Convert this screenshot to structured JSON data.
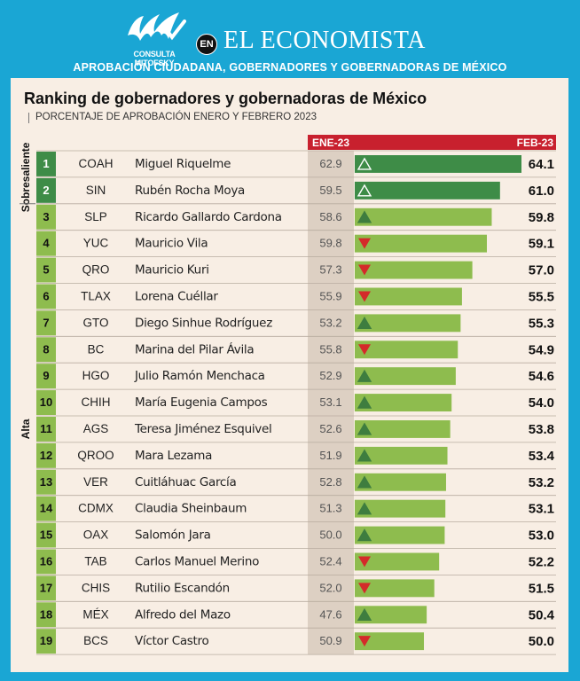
{
  "header": {
    "logo_text": "CONSULTA MITOFSKY",
    "en_badge": "EN",
    "brand": "EL ECONOMISTA",
    "subtitle": "APROBACIÓN CIUDADANA, GOBERNADORES Y GOBERNADORAS DE MÉXICO"
  },
  "colors": {
    "background": "#1aa6d4",
    "panel": "#f8eee4",
    "dark_green": "#3e8c47",
    "light_green": "#8ebc4e",
    "header_red": "#c8202e",
    "triangle_up": "#3e7d3f",
    "triangle_down": "#d42a2a"
  },
  "chart_data": {
    "type": "bar",
    "title": "Ranking de gobernadores y gobernadoras de México",
    "subtitle": "PORCENTAJE DE APROBACIÓN ENERO Y FEBRERO 2023",
    "column_headers": {
      "previous": "ENE-23",
      "current": "FEB-23"
    },
    "groups": [
      {
        "label": "Sobresaliente",
        "ranks": [
          1,
          2
        ]
      },
      {
        "label": "Alta",
        "ranks": [
          3,
          19
        ]
      }
    ],
    "rows": [
      {
        "rank": "1",
        "code": "COAH",
        "name": "Miguel Riquelme",
        "jan": "62.9",
        "feb": "64.1",
        "trend": "up"
      },
      {
        "rank": "2",
        "code": "SIN",
        "name": "Rubén Rocha Moya",
        "jan": "59.5",
        "feb": "61.0",
        "trend": "up"
      },
      {
        "rank": "3",
        "code": "SLP",
        "name": "Ricardo Gallardo Cardona",
        "jan": "58.6",
        "feb": "59.8",
        "trend": "up"
      },
      {
        "rank": "4",
        "code": "YUC",
        "name": "Mauricio Vila",
        "jan": "59.8",
        "feb": "59.1",
        "trend": "down"
      },
      {
        "rank": "5",
        "code": "QRO",
        "name": "Mauricio Kuri",
        "jan": "57.3",
        "feb": "57.0",
        "trend": "down"
      },
      {
        "rank": "6",
        "code": "TLAX",
        "name": "Lorena Cuéllar",
        "jan": "55.9",
        "feb": "55.5",
        "trend": "down"
      },
      {
        "rank": "7",
        "code": "GTO",
        "name": "Diego Sinhue Rodríguez",
        "jan": "53.2",
        "feb": "55.3",
        "trend": "up"
      },
      {
        "rank": "8",
        "code": "BC",
        "name": "Marina del Pilar Ávila",
        "jan": "55.8",
        "feb": "54.9",
        "trend": "down"
      },
      {
        "rank": "9",
        "code": "HGO",
        "name": "Julio Ramón Menchaca",
        "jan": "52.9",
        "feb": "54.6",
        "trend": "up"
      },
      {
        "rank": "10",
        "code": "CHIH",
        "name": "María Eugenia Campos",
        "jan": "53.1",
        "feb": "54.0",
        "trend": "up"
      },
      {
        "rank": "11",
        "code": "AGS",
        "name": "Teresa Jiménez Esquivel",
        "jan": "52.6",
        "feb": "53.8",
        "trend": "up"
      },
      {
        "rank": "12",
        "code": "QROO",
        "name": "Mara Lezama",
        "jan": "51.9",
        "feb": "53.4",
        "trend": "up"
      },
      {
        "rank": "13",
        "code": "VER",
        "name": "Cuitláhuac García",
        "jan": "52.8",
        "feb": "53.2",
        "trend": "up"
      },
      {
        "rank": "14",
        "code": "CDMX",
        "name": "Claudia Sheinbaum",
        "jan": "51.3",
        "feb": "53.1",
        "trend": "up"
      },
      {
        "rank": "15",
        "code": "OAX",
        "name": "Salomón Jara",
        "jan": "50.0",
        "feb": "53.0",
        "trend": "up"
      },
      {
        "rank": "16",
        "code": "TAB",
        "name": "Carlos Manuel Merino",
        "jan": "52.4",
        "feb": "52.2",
        "trend": "down"
      },
      {
        "rank": "17",
        "code": "CHIS",
        "name": "Rutilio Escandón",
        "jan": "52.0",
        "feb": "51.5",
        "trend": "down"
      },
      {
        "rank": "18",
        "code": "MÉX",
        "name": "Alfredo del Mazo",
        "jan": "47.6",
        "feb": "50.4",
        "trend": "up"
      },
      {
        "rank": "19",
        "code": "BCS",
        "name": "Víctor Castro",
        "jan": "50.9",
        "feb": "50.0",
        "trend": "down"
      }
    ]
  }
}
